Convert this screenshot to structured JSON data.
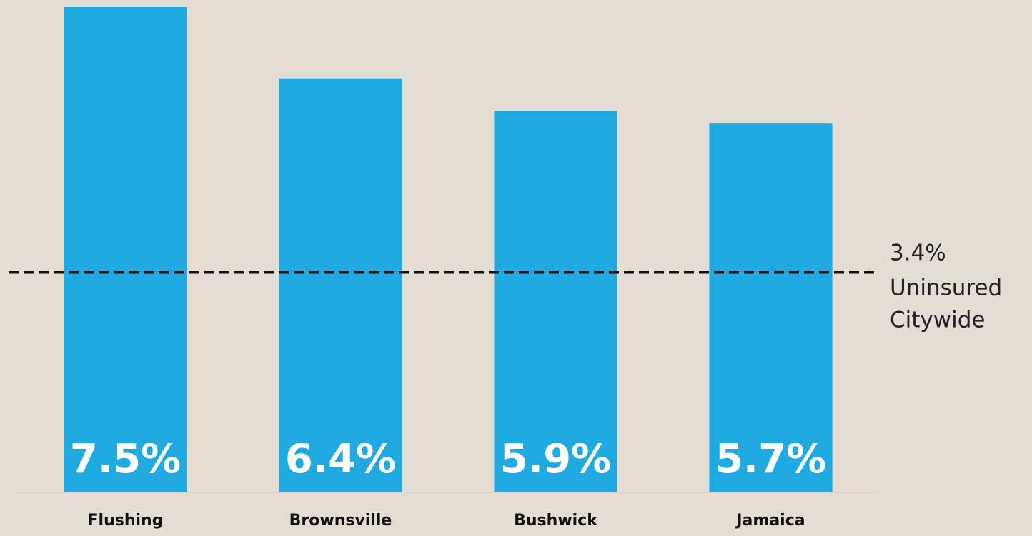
{
  "chart_data": {
    "type": "bar",
    "categories": [
      "Flushing",
      "Brownsville",
      "Bushwick",
      "Jamaica"
    ],
    "values": [
      7.5,
      6.4,
      5.9,
      5.7
    ],
    "value_labels": [
      "7.5%",
      "6.4%",
      "5.9%",
      "5.7%"
    ],
    "color": "#1faae2",
    "ylim": [
      0,
      7.5
    ],
    "reference_line": {
      "value": 3.4,
      "value_label": "3.4%",
      "label": [
        "Uninsured",
        "Citywide"
      ]
    }
  }
}
